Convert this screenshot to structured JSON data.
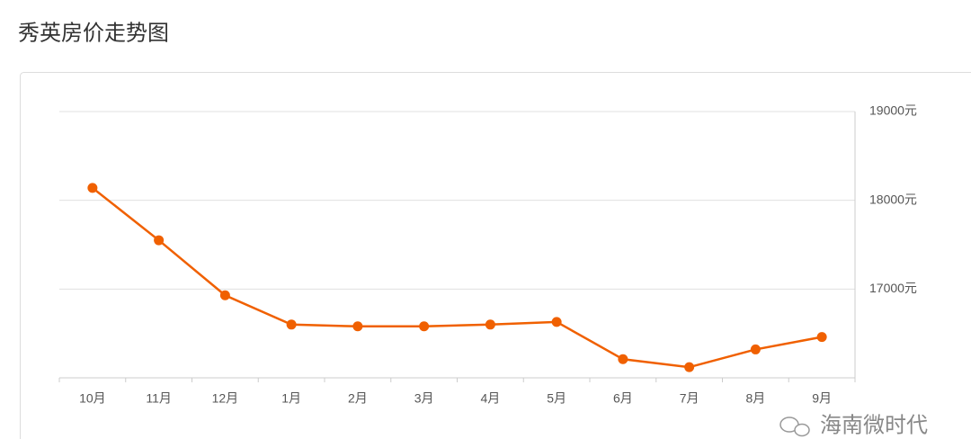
{
  "chart_data": {
    "type": "line",
    "title": "秀英房价走势图",
    "categories": [
      "10月",
      "11月",
      "12月",
      "1月",
      "2月",
      "3月",
      "4月",
      "5月",
      "6月",
      "7月",
      "8月",
      "9月"
    ],
    "series": [
      {
        "name": "房价",
        "color": "#f06000",
        "values": [
          18140,
          17550,
          16930,
          16600,
          16580,
          16580,
          16600,
          16630,
          16210,
          16120,
          16320,
          16460
        ]
      }
    ],
    "ylim": [
      16000,
      19000
    ],
    "yticks": [
      {
        "value": 17000,
        "label": "17000元"
      },
      {
        "value": 18000,
        "label": "18000元"
      },
      {
        "value": 19000,
        "label": "19000元"
      }
    ],
    "grid": true,
    "watermark": "海南微时代"
  }
}
